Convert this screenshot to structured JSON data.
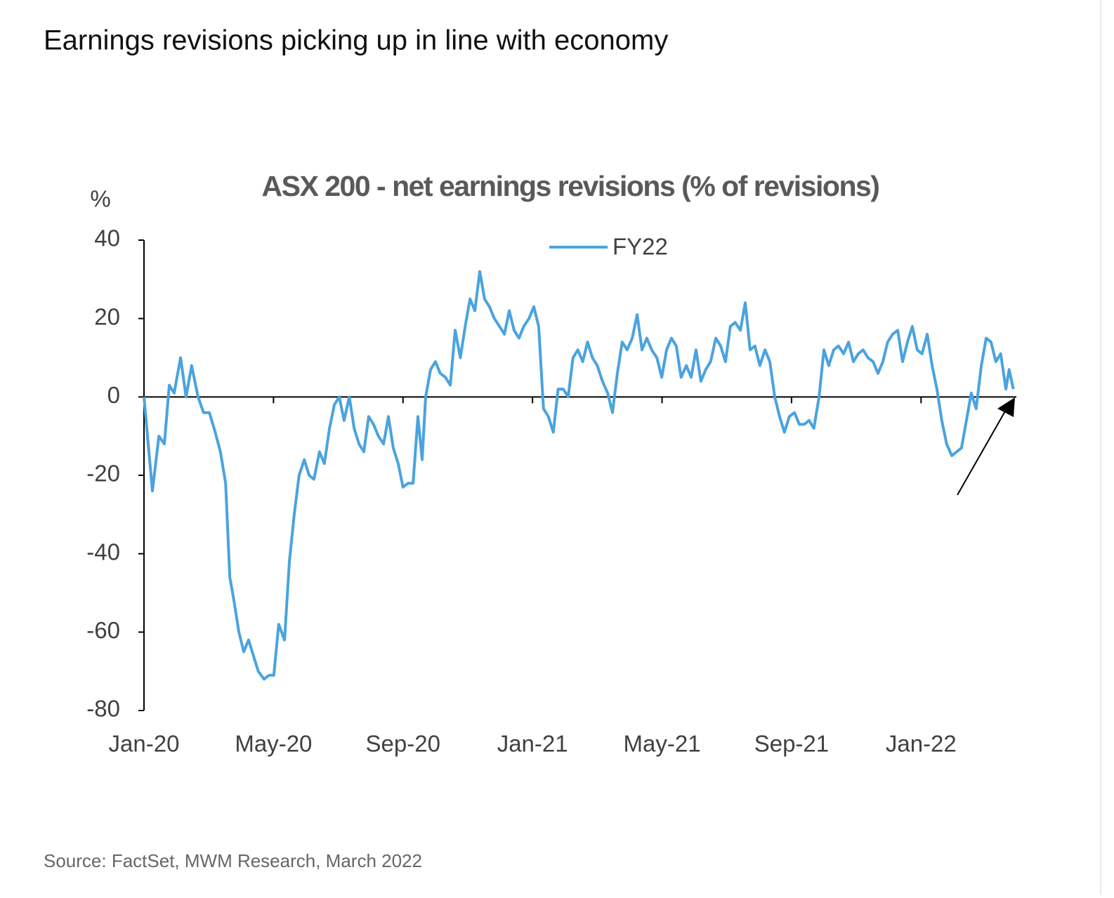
{
  "heading": "Earnings revisions picking up in line with economy",
  "source": "Source: FactSet, MWM Research, March 2022",
  "chart_data": {
    "type": "line",
    "title": "ASX 200 - net earnings revisions (% of revisions)",
    "y_label": "%",
    "xlim": [
      0,
      26.9
    ],
    "ylim": [
      -80,
      40
    ],
    "xticks": [
      {
        "value": 0,
        "label": "Jan-20"
      },
      {
        "value": 4,
        "label": "May-20"
      },
      {
        "value": 8,
        "label": "Sep-20"
      },
      {
        "value": 12,
        "label": "Jan-21"
      },
      {
        "value": 16,
        "label": "May-21"
      },
      {
        "value": 20,
        "label": "Sep-21"
      },
      {
        "value": 24,
        "label": "Jan-22"
      }
    ],
    "yticks": [
      -80,
      -60,
      -40,
      -20,
      0,
      20,
      40
    ],
    "legend": "top",
    "x": [
      0,
      0.13,
      0.26,
      0.46,
      0.63,
      0.78,
      0.93,
      1.13,
      1.3,
      1.47,
      1.67,
      1.84,
      2.02,
      2.2,
      2.36,
      2.52,
      2.65,
      2.78,
      2.93,
      3.08,
      3.23,
      3.38,
      3.53,
      3.71,
      3.86,
      4.01,
      4.16,
      4.34,
      4.49,
      4.64,
      4.79,
      4.95,
      5.1,
      5.25,
      5.42,
      5.57,
      5.73,
      5.88,
      6.03,
      6.18,
      6.34,
      6.49,
      6.64,
      6.79,
      6.94,
      7.09,
      7.24,
      7.4,
      7.55,
      7.7,
      7.85,
      8.0,
      8.16,
      8.31,
      8.46,
      8.59,
      8.7,
      8.85,
      9.0,
      9.15,
      9.31,
      9.46,
      9.61,
      9.77,
      9.92,
      10.07,
      10.22,
      10.37,
      10.52,
      10.67,
      10.82,
      10.98,
      11.13,
      11.28,
      11.43,
      11.58,
      11.73,
      11.89,
      12.04,
      12.19,
      12.34,
      12.49,
      12.64,
      12.79,
      12.95,
      13.1,
      13.25,
      13.4,
      13.55,
      13.7,
      13.85,
      14.0,
      14.16,
      14.32,
      14.47,
      14.62,
      14.77,
      14.92,
      15.08,
      15.23,
      15.38,
      15.53,
      15.68,
      15.84,
      15.99,
      16.14,
      16.29,
      16.44,
      16.59,
      16.75,
      16.9,
      17.05,
      17.2,
      17.35,
      17.5,
      17.66,
      17.81,
      17.96,
      18.11,
      18.26,
      18.42,
      18.57,
      18.72,
      18.87,
      19.02,
      19.18,
      19.33,
      19.48,
      19.63,
      19.78,
      19.93,
      20.09,
      20.24,
      20.39,
      20.54,
      20.69,
      20.85,
      21.0,
      21.15,
      21.3,
      21.45,
      21.61,
      21.76,
      21.91,
      22.06,
      22.21,
      22.36,
      22.52,
      22.67,
      22.82,
      22.97,
      23.12,
      23.28,
      23.43,
      23.58,
      23.73,
      23.88,
      24.03,
      24.19,
      24.34,
      24.49,
      24.64,
      24.79,
      24.95,
      25.1,
      25.25,
      25.4,
      25.55,
      25.7,
      25.86,
      26.01,
      26.16,
      26.31,
      26.46,
      26.62,
      26.72,
      26.85
    ],
    "series": [
      {
        "name": "FY22",
        "color": "#4aa3df",
        "values": [
          0,
          -12,
          -24,
          -10,
          -12,
          3,
          1,
          10,
          0,
          8,
          0,
          -4,
          -4,
          -9,
          -14,
          -22,
          -46,
          -52,
          -60,
          -65,
          -62,
          -66,
          -70,
          -72,
          -71,
          -71,
          -58,
          -62,
          -42,
          -30,
          -20,
          -16,
          -20,
          -21,
          -14,
          -17,
          -8,
          -2,
          0,
          -6,
          0,
          -8,
          -12,
          -14,
          -5,
          -7,
          -10,
          -12,
          -5,
          -13,
          -17,
          -23,
          -22,
          -22,
          -5,
          -16,
          0,
          7,
          9,
          6,
          5,
          3,
          17,
          10,
          18,
          25,
          22,
          32,
          25,
          23,
          20,
          18,
          16,
          22,
          17,
          15,
          18,
          20,
          23,
          18,
          -3,
          -5,
          -9,
          2,
          2,
          0,
          10,
          12,
          9,
          14,
          10,
          8,
          4,
          1,
          -4,
          6,
          14,
          12,
          15,
          21,
          12,
          15,
          12,
          10,
          5,
          12,
          15,
          13,
          5,
          8,
          5,
          12,
          4,
          7,
          9,
          15,
          13,
          9,
          18,
          19,
          17,
          24,
          12,
          13,
          8,
          12,
          9,
          0,
          -5,
          -9,
          -5,
          -4,
          -7,
          -7,
          -6,
          -8,
          0,
          12,
          8,
          12,
          13,
          11,
          14,
          9,
          11,
          12,
          10,
          9,
          6,
          9,
          14,
          16,
          17,
          9,
          14,
          18,
          12,
          11,
          16,
          8,
          2,
          -6,
          -12,
          -15,
          -14,
          -13,
          -6,
          1,
          -3,
          8,
          15,
          14,
          9,
          11,
          2,
          7,
          2
        ]
      }
    ]
  }
}
